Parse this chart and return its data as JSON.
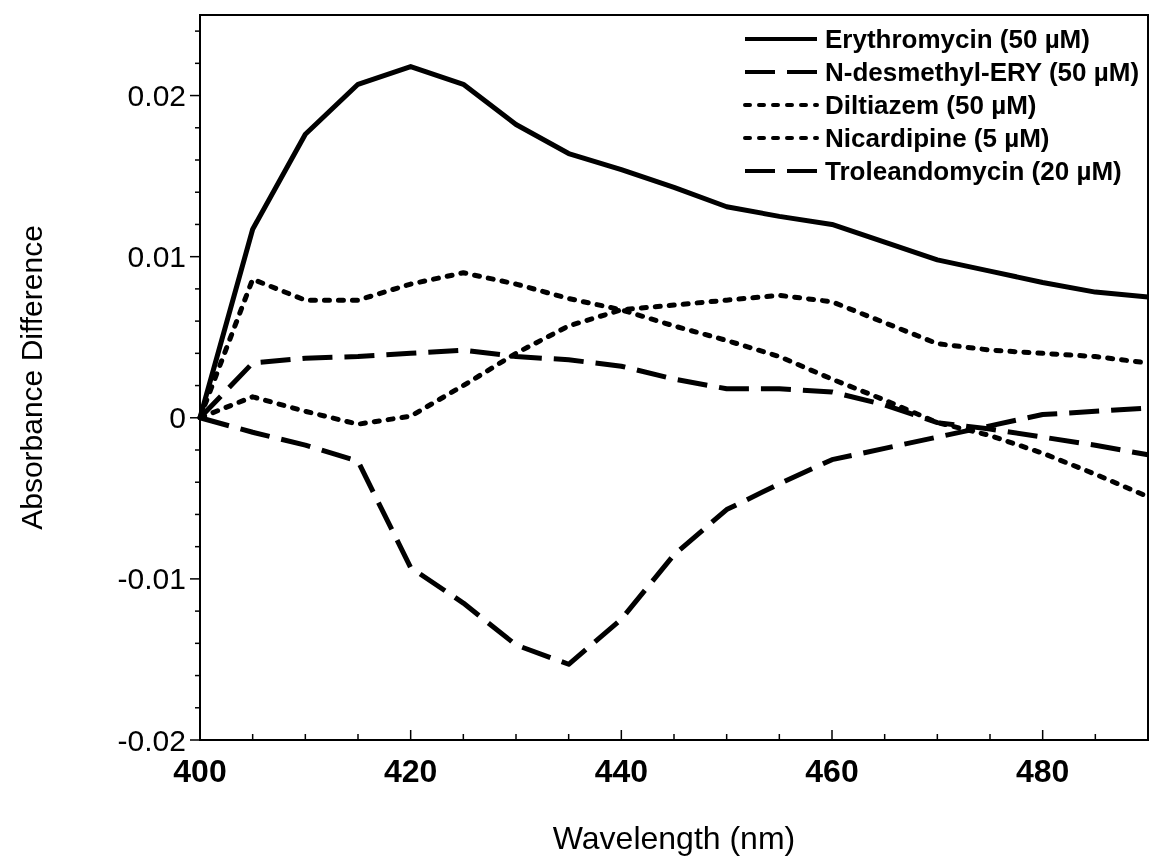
{
  "chart_data": {
    "type": "line",
    "xlabel": "Wavelength (nm)",
    "ylabel": "Absorbance Difference",
    "x": [
      400,
      405,
      410,
      415,
      420,
      425,
      430,
      435,
      440,
      445,
      450,
      455,
      460,
      465,
      470,
      475,
      480,
      485,
      490
    ],
    "series": [
      {
        "name": "Erythromycin (50 µM)",
        "color": "#000000",
        "line_style": "solid",
        "values": [
          0,
          0.0117,
          0.0176,
          0.0207,
          0.0218,
          0.0207,
          0.0182,
          0.0164,
          0.0154,
          0.0143,
          0.0131,
          0.0125,
          0.012,
          0.0109,
          0.0098,
          0.0091,
          0.0084,
          0.0078,
          0.0075
        ]
      },
      {
        "name": "N-desmethyl-ERY (50 µM)",
        "color": "#000000",
        "line_style": "dashed",
        "values": [
          0,
          0.0034,
          0.0037,
          0.0038,
          0.004,
          0.0042,
          0.0038,
          0.0036,
          0.0032,
          0.0024,
          0.0018,
          0.0018,
          0.0016,
          0.0008,
          -0.0003,
          -0.0007,
          -0.0012,
          -0.0017,
          -0.0023
        ]
      },
      {
        "name": "Diltiazem (50 µM)",
        "color": "#000000",
        "line_style": "dotted",
        "values": [
          0,
          0.0086,
          0.0073,
          0.0073,
          0.0083,
          0.009,
          0.0083,
          0.0074,
          0.0067,
          0.0057,
          0.0048,
          0.0038,
          0.0024,
          0.0011,
          -0.0003,
          -0.0011,
          -0.0022,
          -0.0035,
          -0.0049
        ]
      },
      {
        "name": "Nicardipine (5 µM)",
        "color": "#000000",
        "line_style": "dotted",
        "values": [
          0,
          0.0013,
          0.0004,
          -0.0004,
          0.0001,
          0.002,
          0.004,
          0.0057,
          0.0067,
          0.007,
          0.0073,
          0.0076,
          0.0072,
          0.0059,
          0.0046,
          0.0042,
          0.004,
          0.0038,
          0.0034
        ]
      },
      {
        "name": "Troleandomycin (20 µM)",
        "color": "#000000",
        "line_style": "dashed",
        "values": [
          0,
          -0.0009,
          -0.0017,
          -0.0027,
          -0.0093,
          -0.0115,
          -0.0141,
          -0.0153,
          -0.0125,
          -0.0085,
          -0.0057,
          -0.0041,
          -0.0026,
          -0.0019,
          -0.0012,
          -0.0005,
          0.0002,
          0.0004,
          0.0006
        ]
      }
    ],
    "xlim": [
      400,
      490
    ],
    "ylim": [
      -0.02,
      0.025
    ],
    "xticks": [
      400,
      {
        "value": 405,
        "label": null
      },
      {
        "value": 410,
        "label": null
      },
      {
        "value": 415,
        "label": null
      },
      420,
      {
        "value": 425,
        "label": null
      },
      {
        "value": 430,
        "label": null
      },
      {
        "value": 435,
        "label": null
      },
      440,
      {
        "value": 445,
        "label": null
      },
      {
        "value": 450,
        "label": null
      },
      {
        "value": 455,
        "label": null
      },
      460,
      {
        "value": 465,
        "label": null
      },
      {
        "value": 470,
        "label": null
      },
      {
        "value": 475,
        "label": null
      },
      480,
      {
        "value": 485,
        "label": null
      }
    ],
    "yticks": [
      -0.02,
      {
        "value": -0.018,
        "label": null
      },
      {
        "value": -0.016,
        "label": null
      },
      {
        "value": -0.014,
        "label": null
      },
      {
        "value": -0.012,
        "label": null
      },
      -0.01,
      {
        "value": -0.008,
        "label": null
      },
      {
        "value": -0.006,
        "label": null
      },
      {
        "value": -0.004,
        "label": null
      },
      {
        "value": -0.002,
        "label": null
      },
      0,
      {
        "value": 0.002,
        "label": null
      },
      {
        "value": 0.004,
        "label": null
      },
      {
        "value": 0.006,
        "label": null
      },
      {
        "value": 0.008,
        "label": null
      },
      0.01,
      {
        "value": 0.012,
        "label": null
      },
      {
        "value": 0.014,
        "label": null
      },
      {
        "value": 0.016,
        "label": null
      },
      {
        "value": 0.018,
        "label": null
      },
      0.02,
      {
        "value": 0.022,
        "label": null
      },
      {
        "value": 0.024,
        "label": null
      }
    ],
    "grid": false,
    "legend": "top right",
    "marker": "none"
  }
}
